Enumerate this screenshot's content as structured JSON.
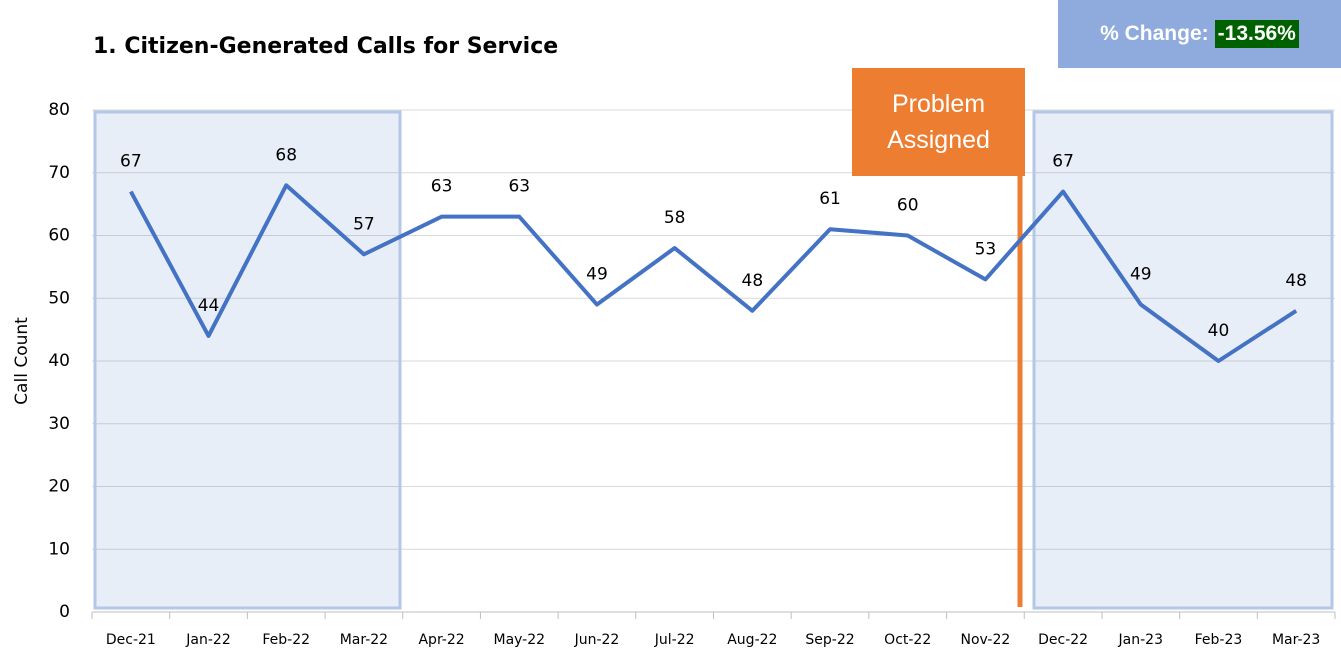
{
  "chart_data": {
    "type": "line",
    "title": "1.   Citizen-Generated Calls for Service",
    "y_label": "Call Count",
    "annotation": "Problem Assigned",
    "change_label": "% Change:",
    "change_value": "-13.56%",
    "categories": [
      "Dec-21",
      "Jan-22",
      "Feb-22",
      "Mar-22",
      "Apr-22",
      "May-22",
      "Jun-22",
      "Jul-22",
      "Aug-22",
      "Sep-22",
      "Oct-22",
      "Nov-22",
      "Dec-22",
      "Jan-23",
      "Feb-23",
      "Mar-23"
    ],
    "values": [
      67,
      44,
      68,
      57,
      63,
      63,
      49,
      58,
      48,
      61,
      60,
      53,
      67,
      49,
      40,
      48
    ],
    "color": "#4472c4",
    "ylim": [
      0,
      80
    ],
    "yticks": [
      0,
      10,
      20,
      30,
      40,
      50,
      60,
      70,
      80
    ],
    "grid": true
  }
}
